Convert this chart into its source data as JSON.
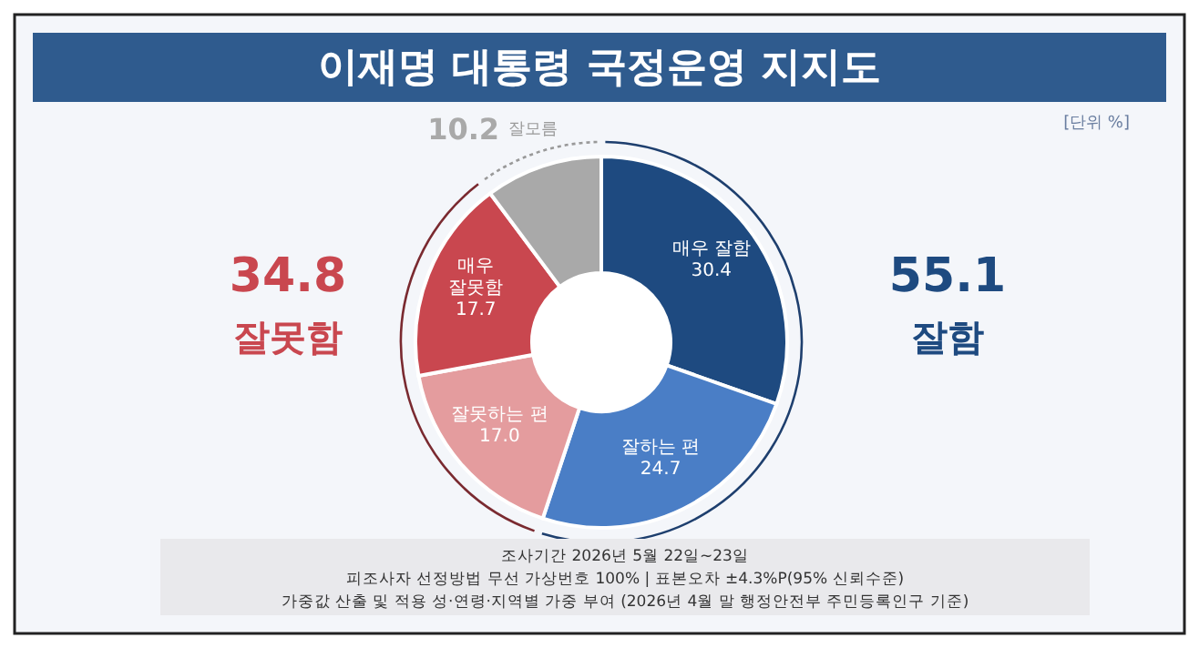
{
  "chart_data": {
    "type": "donut",
    "title": "이재명 대통령 국정운영 지지도",
    "categories": [
      "매우 잘함",
      "잘하는 편",
      "잘못하는 편",
      "매우\n잘못함",
      "잘모름"
    ],
    "values": [
      30.4,
      24.7,
      17.0,
      17.7,
      10.2
    ],
    "colors": [
      "#1e4a80",
      "#4a7ec6",
      "#e49c9e",
      "#c9474f",
      "#a9a9a9"
    ],
    "value_labels": [
      "30.4",
      "24.7",
      "17.0",
      "17.7",
      "10.2"
    ],
    "annotations": [
      "[단위 %]",
      "55.1",
      "잘함",
      "34.8",
      "잘못함",
      "조사기간 2026년 5월 22일~23일",
      "피조사자 선정방법 무선 가상번호 100% | 표본오차 ±4.3%P(95% 신뢰수준)",
      "가중값 산출 및 적용 성·연령·지역별 가중 부여 (2026년 4월 말 행정안전부 주민등록인구 기준)"
    ]
  }
}
